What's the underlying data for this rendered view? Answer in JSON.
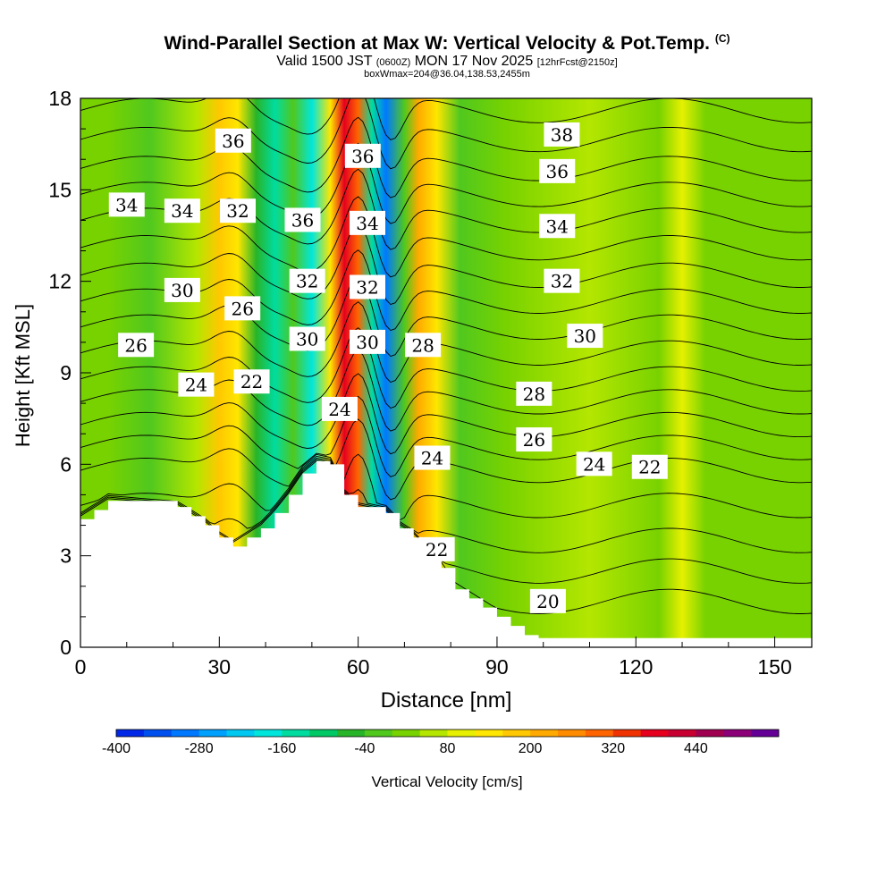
{
  "header": {
    "title": "Wind-Parallel Section at Max W: Vertical Velocity & Pot.Temp.",
    "copyright": "(C)",
    "subtitle_a": "Valid 1500 JST",
    "subtitle_b": "(0600Z)",
    "subtitle_c": "MON 17 Nov 2025",
    "subtitle_d": "[12hrFcst@2150z]",
    "subtitle2": "boxWmax=204@36.04,138.53,2455m"
  },
  "chart_data": {
    "type": "heatmap",
    "title": "Wind-Parallel Section at Max W: Vertical Velocity & Pot.Temp.",
    "xlabel": "Distance [nm]",
    "ylabel": "Height [Kft MSL]",
    "xlim": [
      0,
      158
    ],
    "ylim": [
      0,
      18
    ],
    "xticks": [
      "0",
      "30",
      "60",
      "90",
      "120",
      "150"
    ],
    "yticks": [
      "0",
      "3",
      "6",
      "9",
      "12",
      "15",
      "18"
    ],
    "colorbar": {
      "label": "Vertical Velocity [cm/s]",
      "min": -400,
      "max": 520,
      "step": 40,
      "tick_labels": [
        "-400",
        "-280",
        "-160",
        "-40",
        "80",
        "200",
        "320",
        "440"
      ],
      "colors": [
        "#0028e6",
        "#0050f0",
        "#0078ff",
        "#00a0ff",
        "#00c8f0",
        "#00e6dc",
        "#00dca0",
        "#00c864",
        "#28b428",
        "#50c81e",
        "#78d200",
        "#b4e600",
        "#e6f000",
        "#ffe600",
        "#ffc800",
        "#ffaa00",
        "#ff8c00",
        "#ff6400",
        "#f03200",
        "#e6001e",
        "#c80032",
        "#a00050",
        "#8c0078",
        "#640096"
      ]
    },
    "vertical_velocity_bands": [
      {
        "x": 0,
        "w": 0
      },
      {
        "x": 6,
        "w": 10
      },
      {
        "x": 15,
        "w": -20
      },
      {
        "x": 25,
        "w": 60
      },
      {
        "x": 30,
        "w": 180
      },
      {
        "x": 34,
        "w": 120
      },
      {
        "x": 38,
        "w": -60
      },
      {
        "x": 42,
        "w": -140
      },
      {
        "x": 46,
        "w": -40
      },
      {
        "x": 50,
        "w": -200
      },
      {
        "x": 54,
        "w": 150
      },
      {
        "x": 57,
        "w": 360
      },
      {
        "x": 60,
        "w": 300
      },
      {
        "x": 63,
        "w": -150
      },
      {
        "x": 66,
        "w": -300
      },
      {
        "x": 70,
        "w": -40
      },
      {
        "x": 73,
        "w": 200
      },
      {
        "x": 77,
        "w": 150
      },
      {
        "x": 82,
        "w": -20
      },
      {
        "x": 92,
        "w": 0
      },
      {
        "x": 110,
        "w": 40
      },
      {
        "x": 125,
        "w": 20
      },
      {
        "x": 130,
        "w": 80
      },
      {
        "x": 135,
        "w": 10
      },
      {
        "x": 145,
        "w": 20
      },
      {
        "x": 158,
        "w": 0
      }
    ],
    "terrain": [
      {
        "x": 0,
        "h": 4.2
      },
      {
        "x": 3,
        "h": 4.5
      },
      {
        "x": 6,
        "h": 4.8
      },
      {
        "x": 21,
        "h": 4.6
      },
      {
        "x": 24,
        "h": 4.3
      },
      {
        "x": 27,
        "h": 4.0
      },
      {
        "x": 30,
        "h": 3.6
      },
      {
        "x": 33,
        "h": 3.3
      },
      {
        "x": 36,
        "h": 3.6
      },
      {
        "x": 39,
        "h": 3.9
      },
      {
        "x": 42,
        "h": 4.4
      },
      {
        "x": 45,
        "h": 5.0
      },
      {
        "x": 48,
        "h": 5.7
      },
      {
        "x": 51,
        "h": 6.1
      },
      {
        "x": 54,
        "h": 6.0
      },
      {
        "x": 57,
        "h": 5.0
      },
      {
        "x": 60,
        "h": 4.6
      },
      {
        "x": 66,
        "h": 4.4
      },
      {
        "x": 69,
        "h": 3.9
      },
      {
        "x": 72,
        "h": 3.6
      },
      {
        "x": 75,
        "h": 3.1
      },
      {
        "x": 78,
        "h": 2.6
      },
      {
        "x": 81,
        "h": 1.9
      },
      {
        "x": 84,
        "h": 1.6
      },
      {
        "x": 87,
        "h": 1.3
      },
      {
        "x": 90,
        "h": 1.0
      },
      {
        "x": 93,
        "h": 0.7
      },
      {
        "x": 96,
        "h": 0.4
      },
      {
        "x": 99,
        "h": 0.3
      },
      {
        "x": 158,
        "h": 0.3
      }
    ],
    "theta_contours": [
      {
        "level": 20,
        "ref_height": 1.5
      },
      {
        "level": 22,
        "ref_height": 3.5
      },
      {
        "level": 24,
        "ref_height": 5.8
      },
      {
        "level": 26,
        "ref_height": 7.3
      },
      {
        "level": 28,
        "ref_height": 8.8
      },
      {
        "level": 30,
        "ref_height": 10.5
      },
      {
        "level": 32,
        "ref_height": 12.2
      },
      {
        "level": 34,
        "ref_height": 14.0
      },
      {
        "level": 36,
        "ref_height": 15.7
      },
      {
        "level": 38,
        "ref_height": 17.6
      }
    ],
    "contour_labels": [
      {
        "text": "36",
        "x": 33,
        "y": 16.6
      },
      {
        "text": "38",
        "x": 104,
        "y": 16.8
      },
      {
        "text": "36",
        "x": 61,
        "y": 16.1
      },
      {
        "text": "36",
        "x": 103,
        "y": 15.6
      },
      {
        "text": "34",
        "x": 10,
        "y": 14.5
      },
      {
        "text": "34",
        "x": 22,
        "y": 14.3
      },
      {
        "text": "32",
        "x": 34,
        "y": 14.3
      },
      {
        "text": "36",
        "x": 48,
        "y": 14.0
      },
      {
        "text": "34",
        "x": 62,
        "y": 13.9
      },
      {
        "text": "34",
        "x": 103,
        "y": 13.8
      },
      {
        "text": "32",
        "x": 104,
        "y": 12.0
      },
      {
        "text": "30",
        "x": 22,
        "y": 11.7
      },
      {
        "text": "32",
        "x": 49,
        "y": 12.0
      },
      {
        "text": "32",
        "x": 62,
        "y": 11.8
      },
      {
        "text": "26",
        "x": 35,
        "y": 11.1
      },
      {
        "text": "30",
        "x": 109,
        "y": 10.2
      },
      {
        "text": "26",
        "x": 12,
        "y": 9.9
      },
      {
        "text": "30",
        "x": 49,
        "y": 10.1
      },
      {
        "text": "30",
        "x": 62,
        "y": 10.0
      },
      {
        "text": "28",
        "x": 74,
        "y": 9.9
      },
      {
        "text": "24",
        "x": 25,
        "y": 8.6
      },
      {
        "text": "22",
        "x": 37,
        "y": 8.7
      },
      {
        "text": "28",
        "x": 98,
        "y": 8.3
      },
      {
        "text": "24",
        "x": 56,
        "y": 7.8
      },
      {
        "text": "26",
        "x": 98,
        "y": 6.8
      },
      {
        "text": "24",
        "x": 76,
        "y": 6.2
      },
      {
        "text": "24",
        "x": 111,
        "y": 6.0
      },
      {
        "text": "22",
        "x": 123,
        "y": 5.9
      },
      {
        "text": "22",
        "x": 77,
        "y": 3.2
      },
      {
        "text": "20",
        "x": 101,
        "y": 1.5
      }
    ]
  }
}
